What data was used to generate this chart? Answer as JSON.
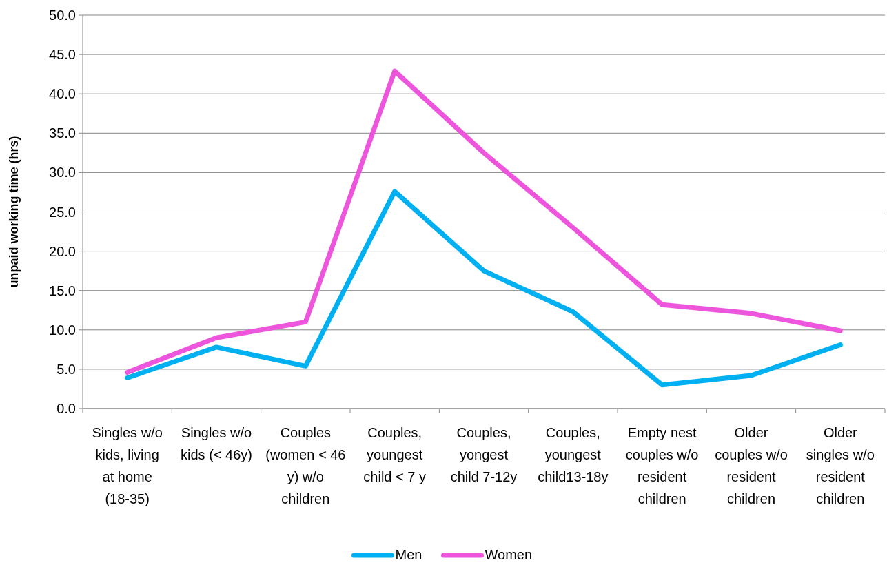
{
  "chart_data": {
    "type": "line",
    "ylabel": "unpaid working time (hrs)",
    "categories": [
      "Singles w/o kids, living at home (18-35)",
      "Singles w/o kids (< 46y)",
      "Couples (women < 46 y) w/o children",
      "Couples, youngest child < 7 y",
      "Couples, yongest child 7-12y",
      "Couples, youngest child13-18y",
      "Empty nest couples w/o resident children",
      "Older couples w/o resident children",
      "Older singles w/o resident children"
    ],
    "series": [
      {
        "name": "Men",
        "color": "#00b0f0",
        "values": [
          3.9,
          7.8,
          5.4,
          27.6,
          17.5,
          12.3,
          3.0,
          4.2,
          8.1
        ]
      },
      {
        "name": "Women",
        "color": "#ee55dd",
        "values": [
          4.6,
          9.0,
          11.0,
          42.9,
          32.5,
          23.0,
          13.2,
          12.1,
          9.9
        ]
      }
    ],
    "ylim": [
      0,
      50
    ],
    "yticks": [
      {
        "value": 0,
        "label": "0.0"
      },
      {
        "value": 5,
        "label": "5.0"
      },
      {
        "value": 10,
        "label": "10.0"
      },
      {
        "value": 15,
        "label": "15.0"
      },
      {
        "value": 20,
        "label": "20.0"
      },
      {
        "value": 25,
        "label": "25.0"
      },
      {
        "value": 30,
        "label": "30.0"
      },
      {
        "value": 35,
        "label": "35.0"
      },
      {
        "value": 40,
        "label": "40.0"
      },
      {
        "value": 45,
        "label": "45.0"
      },
      {
        "value": 50,
        "label": "50.0"
      }
    ],
    "grid": "y",
    "legend": "bottom",
    "marker": "none",
    "line_style": "solid"
  }
}
